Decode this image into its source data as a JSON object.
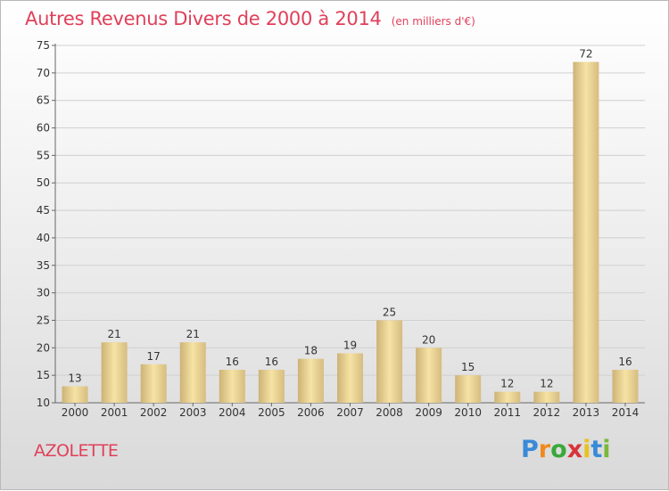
{
  "header": {
    "title": "Autres Revenus Divers de 2000 à 2014",
    "unit_note": "(en milliers d'€)"
  },
  "footer": {
    "place": "AZOLETTE",
    "logo_letters": [
      "P",
      "r",
      "o",
      "x",
      "i",
      "t",
      "i"
    ],
    "logo_colors": [
      "#3a8ad8",
      "#f08a1c",
      "#3aa83a",
      "#d8333a",
      "#e8c21c",
      "#3a8ad8",
      "#7ab83a"
    ]
  },
  "chart_data": {
    "type": "bar",
    "title": "Autres Revenus Divers de 2000 à 2014",
    "subtitle": "(en milliers d'€)",
    "categories": [
      "2000",
      "2001",
      "2002",
      "2003",
      "2004",
      "2005",
      "2006",
      "2007",
      "2008",
      "2009",
      "2010",
      "2011",
      "2012",
      "2013",
      "2014"
    ],
    "values": [
      13,
      21,
      17,
      21,
      16,
      16,
      18,
      19,
      25,
      20,
      15,
      12,
      12,
      72,
      16
    ],
    "ylim": [
      10,
      75
    ],
    "yticks": [
      10,
      15,
      20,
      25,
      30,
      35,
      40,
      45,
      50,
      55,
      60,
      65,
      70,
      75
    ],
    "grid": true,
    "xlabel": "",
    "ylabel": "",
    "colors": {
      "bar_light": "#f6e3a4",
      "bar_dark": "#cdb276",
      "grid": "#d0d0d0",
      "axis": "#666666",
      "text": "#333333"
    }
  }
}
